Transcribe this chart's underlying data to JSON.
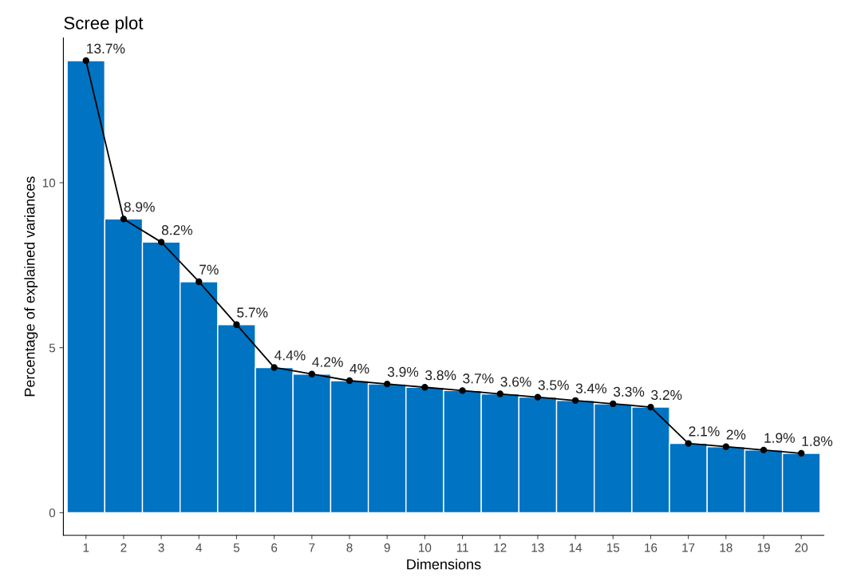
{
  "chart_data": {
    "type": "bar",
    "title": "Scree plot",
    "xlabel": "Dimensions",
    "ylabel": "Percentage of explained variances",
    "categories": [
      "1",
      "2",
      "3",
      "4",
      "5",
      "6",
      "7",
      "8",
      "9",
      "10",
      "11",
      "12",
      "13",
      "14",
      "15",
      "16",
      "17",
      "18",
      "19",
      "20"
    ],
    "series": [
      {
        "color": "#0073c2",
        "values": [
          13.7,
          8.9,
          8.2,
          7,
          5.7,
          4.4,
          4.2,
          4,
          3.9,
          3.8,
          3.7,
          3.6,
          3.5,
          3.4,
          3.3,
          3.2,
          2.1,
          2,
          1.9,
          1.8
        ]
      },
      {
        "type": "line",
        "color": "#000000",
        "marker": "circle",
        "line_style": "solid",
        "values": [
          13.7,
          8.9,
          8.2,
          7,
          5.7,
          4.4,
          4.2,
          4,
          3.9,
          3.8,
          3.7,
          3.6,
          3.5,
          3.4,
          3.3,
          3.2,
          2.1,
          2,
          1.9,
          1.8
        ],
        "value_labels": [
          "13.7%",
          "8.9%",
          "8.2%",
          "7%",
          "5.7%",
          "4.4%",
          "4.2%",
          "4%",
          "3.9%",
          "3.8%",
          "3.7%",
          "3.6%",
          "3.5%",
          "3.4%",
          "3.3%",
          "3.2%",
          "2.1%",
          "2%",
          "1.9%",
          "1.8%"
        ]
      }
    ],
    "ylim": [
      -0.685,
      14.385
    ],
    "yticks": [
      0,
      5,
      10
    ],
    "grid": false,
    "legend": false
  }
}
